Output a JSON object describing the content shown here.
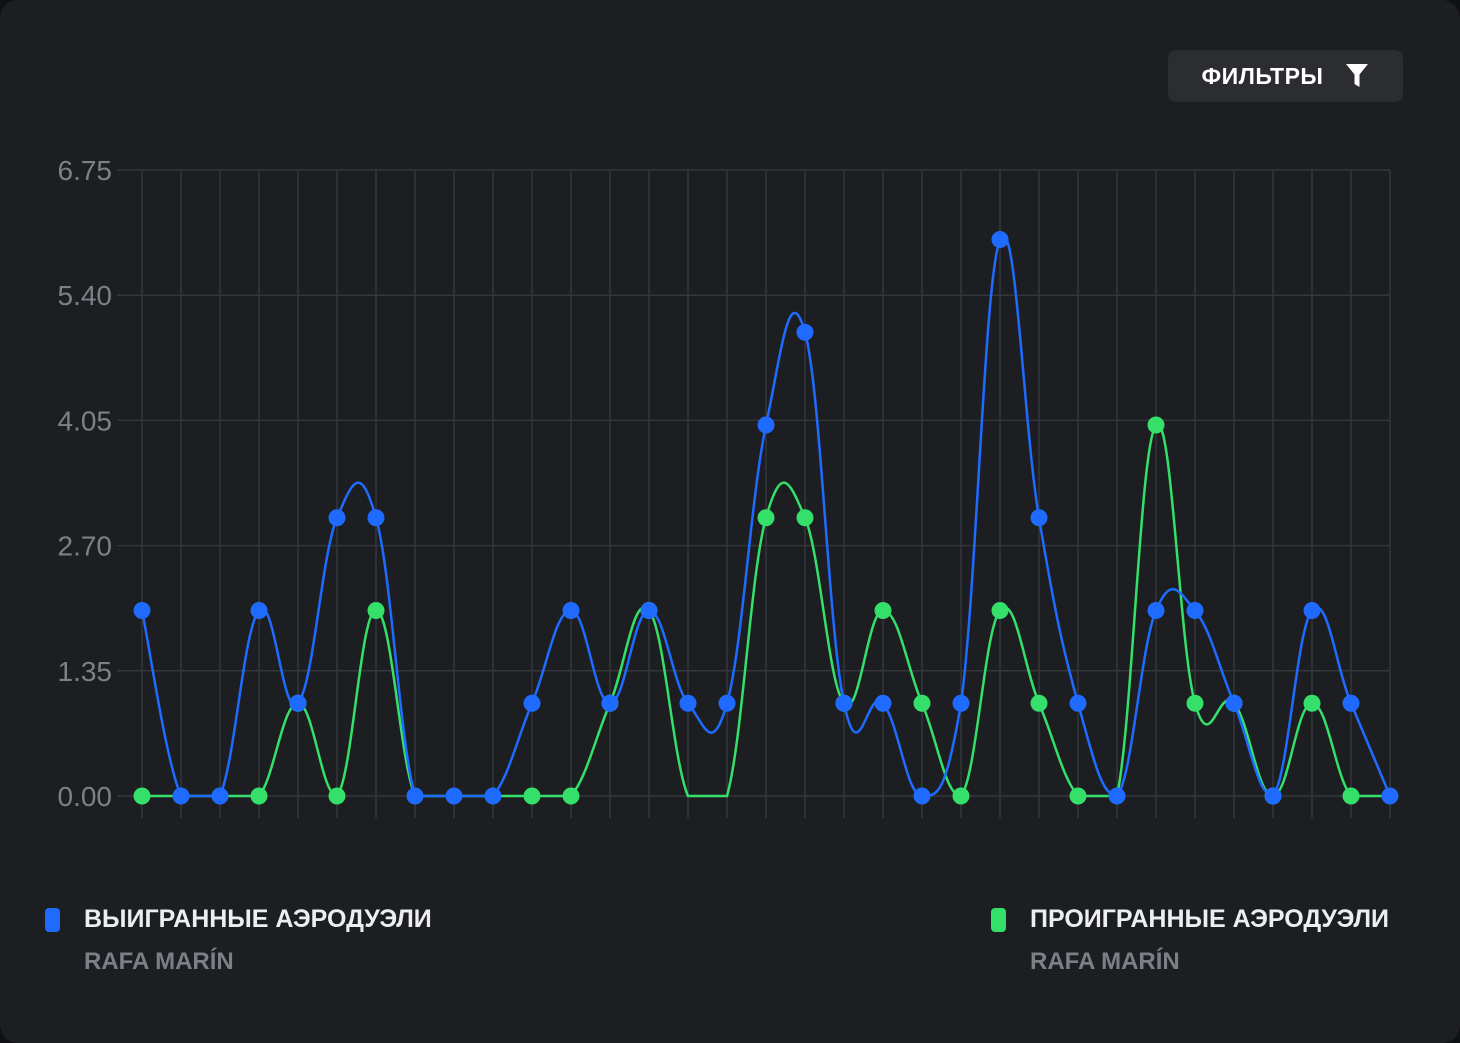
{
  "filters_label": "ФИЛЬТРЫ",
  "colors": {
    "background": "#1d1e21",
    "grid": "#33363a",
    "series_won": "#1f6bff",
    "series_lost": "#35e06a"
  },
  "chart_data": {
    "type": "line",
    "title": "",
    "xlabel": "",
    "ylabel": "",
    "ylim": [
      0,
      6.75
    ],
    "yticks": [
      "0.00",
      "1.35",
      "2.70",
      "4.05",
      "5.40",
      "6.75"
    ],
    "grid": true,
    "curve": "smooth",
    "legend_position": "bottom",
    "series": [
      {
        "name": "ВЫИГРАННЫЕ АЭРОДУЭЛИ",
        "subtitle": "RAFA MARÍN",
        "color": "#1f6bff",
        "values": [
          2,
          0,
          0,
          2,
          1,
          3,
          3,
          0,
          0,
          0,
          1,
          2,
          1,
          2,
          1,
          1,
          4,
          5,
          1,
          1,
          0,
          1,
          6,
          3,
          1,
          0,
          2,
          2,
          1,
          0,
          2,
          1,
          0
        ]
      },
      {
        "name": "ПРОИГРАННЫЕ АЭРОДУЭЛИ",
        "subtitle": "RAFA MARÍN",
        "color": "#35e06a",
        "values": [
          0,
          null,
          null,
          0,
          1,
          0,
          2,
          null,
          null,
          null,
          0,
          0,
          1,
          2,
          null,
          null,
          3,
          3,
          1,
          2,
          1,
          0,
          2,
          1,
          0,
          null,
          4,
          1,
          1,
          0,
          1,
          0,
          null
        ]
      }
    ]
  }
}
